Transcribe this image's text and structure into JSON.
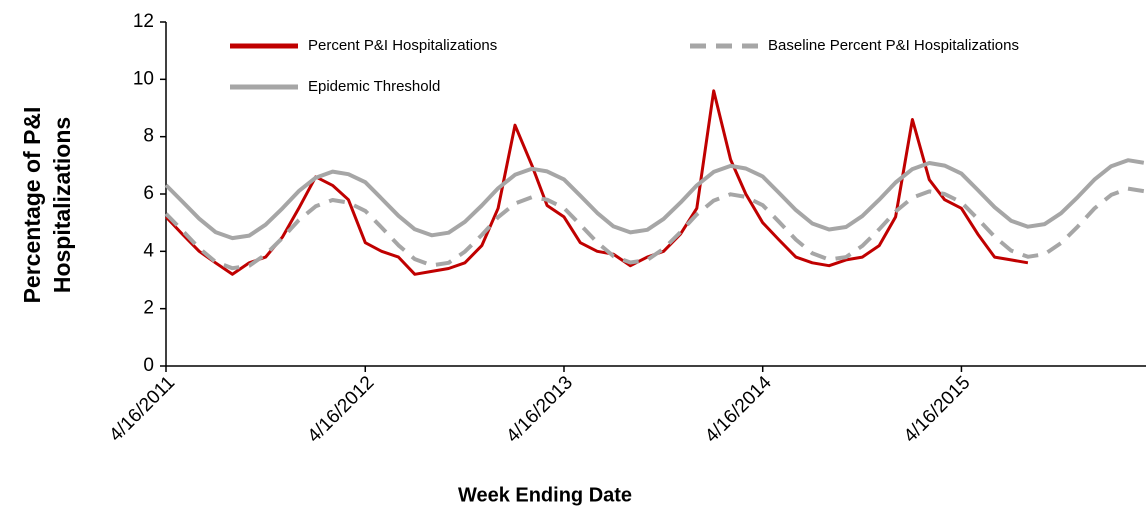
{
  "chart_data": {
    "type": "line",
    "xlabel": "Week Ending Date",
    "ylabel": [
      "Percentage of P&I",
      "Hospitalizations"
    ],
    "x": [
      "4/16/2011",
      "5/16/2011",
      "6/16/2011",
      "7/16/2011",
      "8/16/2011",
      "9/16/2011",
      "10/16/2011",
      "11/16/2011",
      "12/16/2011",
      "1/16/2012",
      "2/16/2012",
      "3/16/2012",
      "4/16/2012",
      "5/16/2012",
      "6/16/2012",
      "7/16/2012",
      "8/16/2012",
      "9/16/2012",
      "10/16/2012",
      "11/16/2012",
      "12/16/2012",
      "1/16/2013",
      "2/16/2013",
      "3/16/2013",
      "4/16/2013",
      "5/16/2013",
      "6/16/2013",
      "7/16/2013",
      "8/16/2013",
      "9/16/2013",
      "10/16/2013",
      "11/16/2013",
      "12/16/2013",
      "1/16/2014",
      "2/16/2014",
      "3/16/2014",
      "4/16/2014",
      "5/16/2014",
      "6/16/2014",
      "7/16/2014",
      "8/16/2014",
      "9/16/2014",
      "10/16/2014",
      "11/16/2014",
      "12/16/2014",
      "1/16/2015",
      "2/16/2015",
      "3/16/2015",
      "4/16/2015",
      "5/16/2015",
      "6/16/2015",
      "7/16/2015",
      "8/16/2015",
      "9/16/2015",
      "10/16/2015",
      "11/16/2015",
      "12/16/2015",
      "1/16/2016",
      "2/16/2016",
      "3/16/2016"
    ],
    "series": [
      {
        "name": "Percent P&I Hospitalizations",
        "color": "#c00000",
        "dashed": false,
        "values": [
          5.2,
          4.6,
          4.0,
          3.6,
          3.2,
          3.6,
          3.8,
          4.5,
          5.5,
          6.6,
          6.3,
          5.8,
          4.3,
          4.0,
          3.8,
          3.2,
          3.3,
          3.4,
          3.6,
          4.2,
          5.5,
          8.4,
          7.0,
          5.6,
          5.2,
          4.3,
          4.0,
          3.9,
          3.5,
          3.8,
          4.0,
          4.6,
          5.5,
          9.6,
          7.2,
          6.0,
          5.0,
          4.4,
          3.8,
          3.6,
          3.5,
          3.7,
          3.8,
          4.2,
          5.2,
          8.6,
          6.5,
          5.8,
          5.5,
          4.6,
          3.8,
          3.7,
          3.6,
          null,
          null,
          null,
          null,
          null,
          null,
          null
        ]
      },
      {
        "name": "Baseline Percent P&I Hospitalizations",
        "color": "#a6a6a6",
        "dashed": true,
        "values": [
          5.31,
          4.73,
          4.11,
          3.63,
          3.41,
          3.5,
          3.89,
          4.47,
          5.09,
          5.57,
          5.79,
          5.7,
          5.41,
          4.83,
          4.21,
          3.73,
          3.51,
          3.6,
          3.99,
          4.57,
          5.19,
          5.67,
          5.89,
          5.8,
          5.51,
          4.93,
          4.31,
          3.83,
          3.61,
          3.7,
          4.09,
          4.67,
          5.29,
          5.77,
          5.99,
          5.9,
          5.61,
          5.03,
          4.41,
          3.93,
          3.71,
          3.8,
          4.19,
          4.77,
          5.39,
          5.87,
          6.09,
          6.0,
          5.71,
          5.13,
          4.51,
          4.03,
          3.81,
          3.9,
          4.29,
          4.87,
          5.49,
          5.97,
          6.19,
          6.1
        ]
      },
      {
        "name": "Epidemic Threshold",
        "color": "#a6a6a6",
        "dashed": false,
        "values": [
          6.31,
          5.74,
          5.14,
          4.67,
          4.46,
          4.55,
          4.93,
          5.5,
          6.1,
          6.57,
          6.78,
          6.69,
          6.41,
          5.84,
          5.24,
          4.77,
          4.56,
          4.65,
          5.03,
          5.6,
          6.2,
          6.67,
          6.88,
          6.79,
          6.51,
          5.94,
          5.34,
          4.87,
          4.66,
          4.75,
          5.13,
          5.7,
          6.3,
          6.77,
          6.98,
          6.89,
          6.61,
          6.04,
          5.44,
          4.97,
          4.76,
          4.85,
          5.23,
          5.8,
          6.4,
          6.87,
          7.08,
          6.99,
          6.71,
          6.14,
          5.54,
          5.07,
          4.86,
          4.95,
          5.33,
          5.9,
          6.5,
          6.97,
          7.18,
          7.09
        ]
      }
    ],
    "xlim": [
      "4/16/2011",
      "3/20/2016"
    ],
    "xticks": [
      "4/16/2011",
      "4/16/2012",
      "4/16/2013",
      "4/16/2014",
      "4/16/2015"
    ],
    "ylim": [
      0,
      12
    ],
    "yticks": [
      0,
      2,
      4,
      6,
      8,
      10,
      12
    ],
    "grid": false,
    "legend": "top"
  }
}
